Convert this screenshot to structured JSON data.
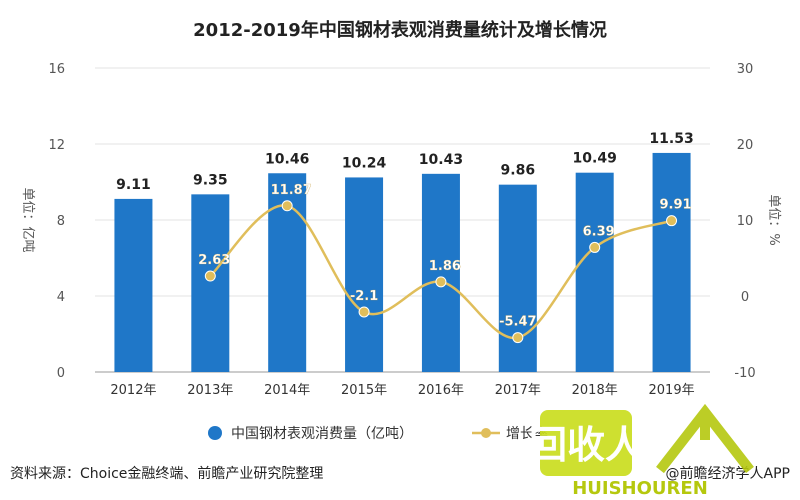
{
  "chart_data": {
    "type": "bar",
    "title": "2012-2019年中国钢材表观消费量统计及增长情况",
    "categories": [
      "2012年",
      "2013年",
      "2014年",
      "2015年",
      "2016年",
      "2017年",
      "2018年",
      "2019年"
    ],
    "series": [
      {
        "name": "中国钢材表观消费量（亿吨）",
        "type": "bar",
        "axis": "left",
        "color": "#1f77c8",
        "values": [
          9.11,
          9.35,
          10.46,
          10.24,
          10.43,
          9.86,
          10.49,
          11.53
        ]
      },
      {
        "name": "增长率",
        "type": "line",
        "axis": "right",
        "color": "#e0be5b",
        "values": [
          null,
          2.63,
          11.87,
          -2.1,
          1.86,
          -5.47,
          6.39,
          9.91
        ]
      }
    ],
    "y_left": {
      "label": "单位：亿吨",
      "range": [
        0,
        16
      ],
      "ticks": [
        0,
        4,
        8,
        12,
        16
      ]
    },
    "y_right": {
      "label": "单位：%",
      "range": [
        -10,
        30
      ],
      "ticks": [
        -10,
        0,
        10,
        20,
        30
      ]
    },
    "grid": true,
    "legend_position": "bottom"
  },
  "source": "资料来源：Choice金融终端、前瞻产业研究院整理",
  "credit": "@前瞻经济学人APP",
  "watermark": "HUISHOUREN",
  "watermark_logo": "回收人"
}
